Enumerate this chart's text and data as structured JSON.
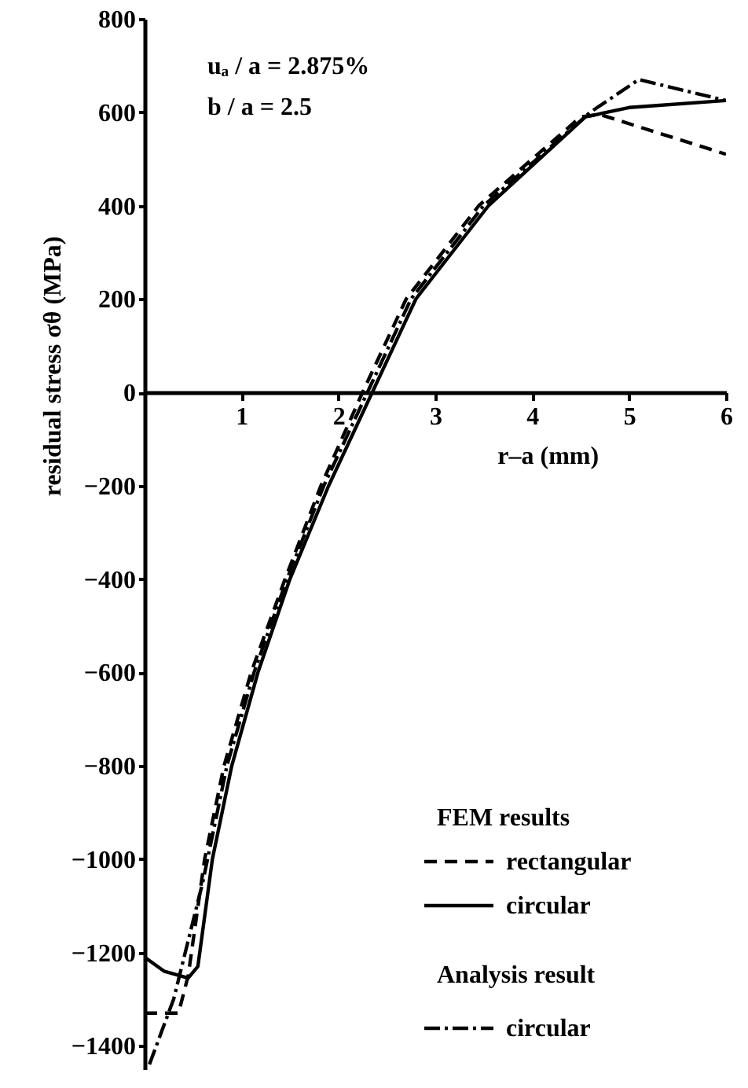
{
  "chart_data": {
    "type": "line",
    "xlabel": "r–a (mm)",
    "ylabel": "residual stress σθ (MPa)",
    "xlim": [
      0,
      6
    ],
    "xticks": [
      1,
      2,
      3,
      4,
      5,
      6
    ],
    "ylim": [
      -1450,
      800
    ],
    "yticks": [
      -1400,
      -1200,
      -1000,
      -800,
      -600,
      -400,
      -200,
      0,
      200,
      400,
      600,
      800
    ],
    "grid": false,
    "legend": "bottom right",
    "marker": "none",
    "annotations": [
      "uₐ / a = 2.875%",
      "b / a = 2.5",
      "FEM results",
      "Analysis result"
    ],
    "series": [
      {
        "name": "rectangular",
        "color": "#000000",
        "line_style": "dashed",
        "x": [
          0,
          0.35,
          0.45,
          0.62,
          0.82,
          1.1,
          1.45,
          1.82,
          2.25,
          2.7,
          3.45,
          4.5,
          4.7,
          6
        ],
        "values": [
          -1330,
          -1330,
          -1250,
          -1000,
          -800,
          -600,
          -400,
          -200,
          0,
          200,
          400,
          590,
          595,
          510
        ]
      },
      {
        "name": "circular",
        "color": "#000000",
        "line_style": "solid",
        "x": [
          0,
          0.2,
          0.45,
          0.55,
          0.7,
          0.9,
          1.17,
          1.5,
          1.9,
          2.35,
          2.8,
          3.55,
          4.55,
          5,
          6
        ],
        "values": [
          -1210,
          -1240,
          -1255,
          -1230,
          -1000,
          -800,
          -600,
          -400,
          -200,
          0,
          200,
          400,
          590,
          610,
          625
        ]
      },
      {
        "name": "circular",
        "color": "#000000",
        "line_style": "dashdot",
        "x": [
          0.05,
          0.3,
          0.6,
          0.85,
          1.13,
          1.47,
          1.85,
          2.3,
          2.75,
          3.5,
          4.6,
          5.1,
          6
        ],
        "values": [
          -1440,
          -1300,
          -1050,
          -800,
          -600,
          -400,
          -200,
          0,
          200,
          400,
          600,
          670,
          625
        ]
      }
    ]
  }
}
